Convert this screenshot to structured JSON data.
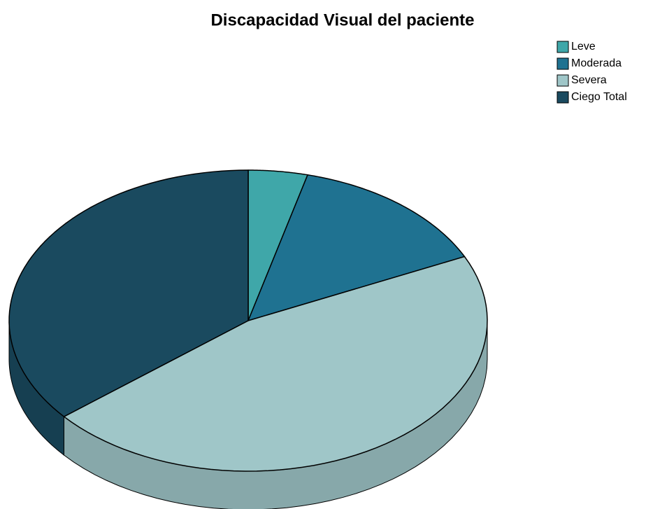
{
  "chart_data": {
    "type": "pie",
    "title": "Discapacidad Visual del paciente",
    "categories": [
      "Leve",
      "Moderada",
      "Severa",
      "Ciego Total"
    ],
    "values": [
      4,
      14,
      46,
      36
    ],
    "colors": [
      "#3fa7a9",
      "#1f7291",
      "#9fc6c8",
      "#1a4a5f"
    ],
    "legend": "top-right"
  }
}
